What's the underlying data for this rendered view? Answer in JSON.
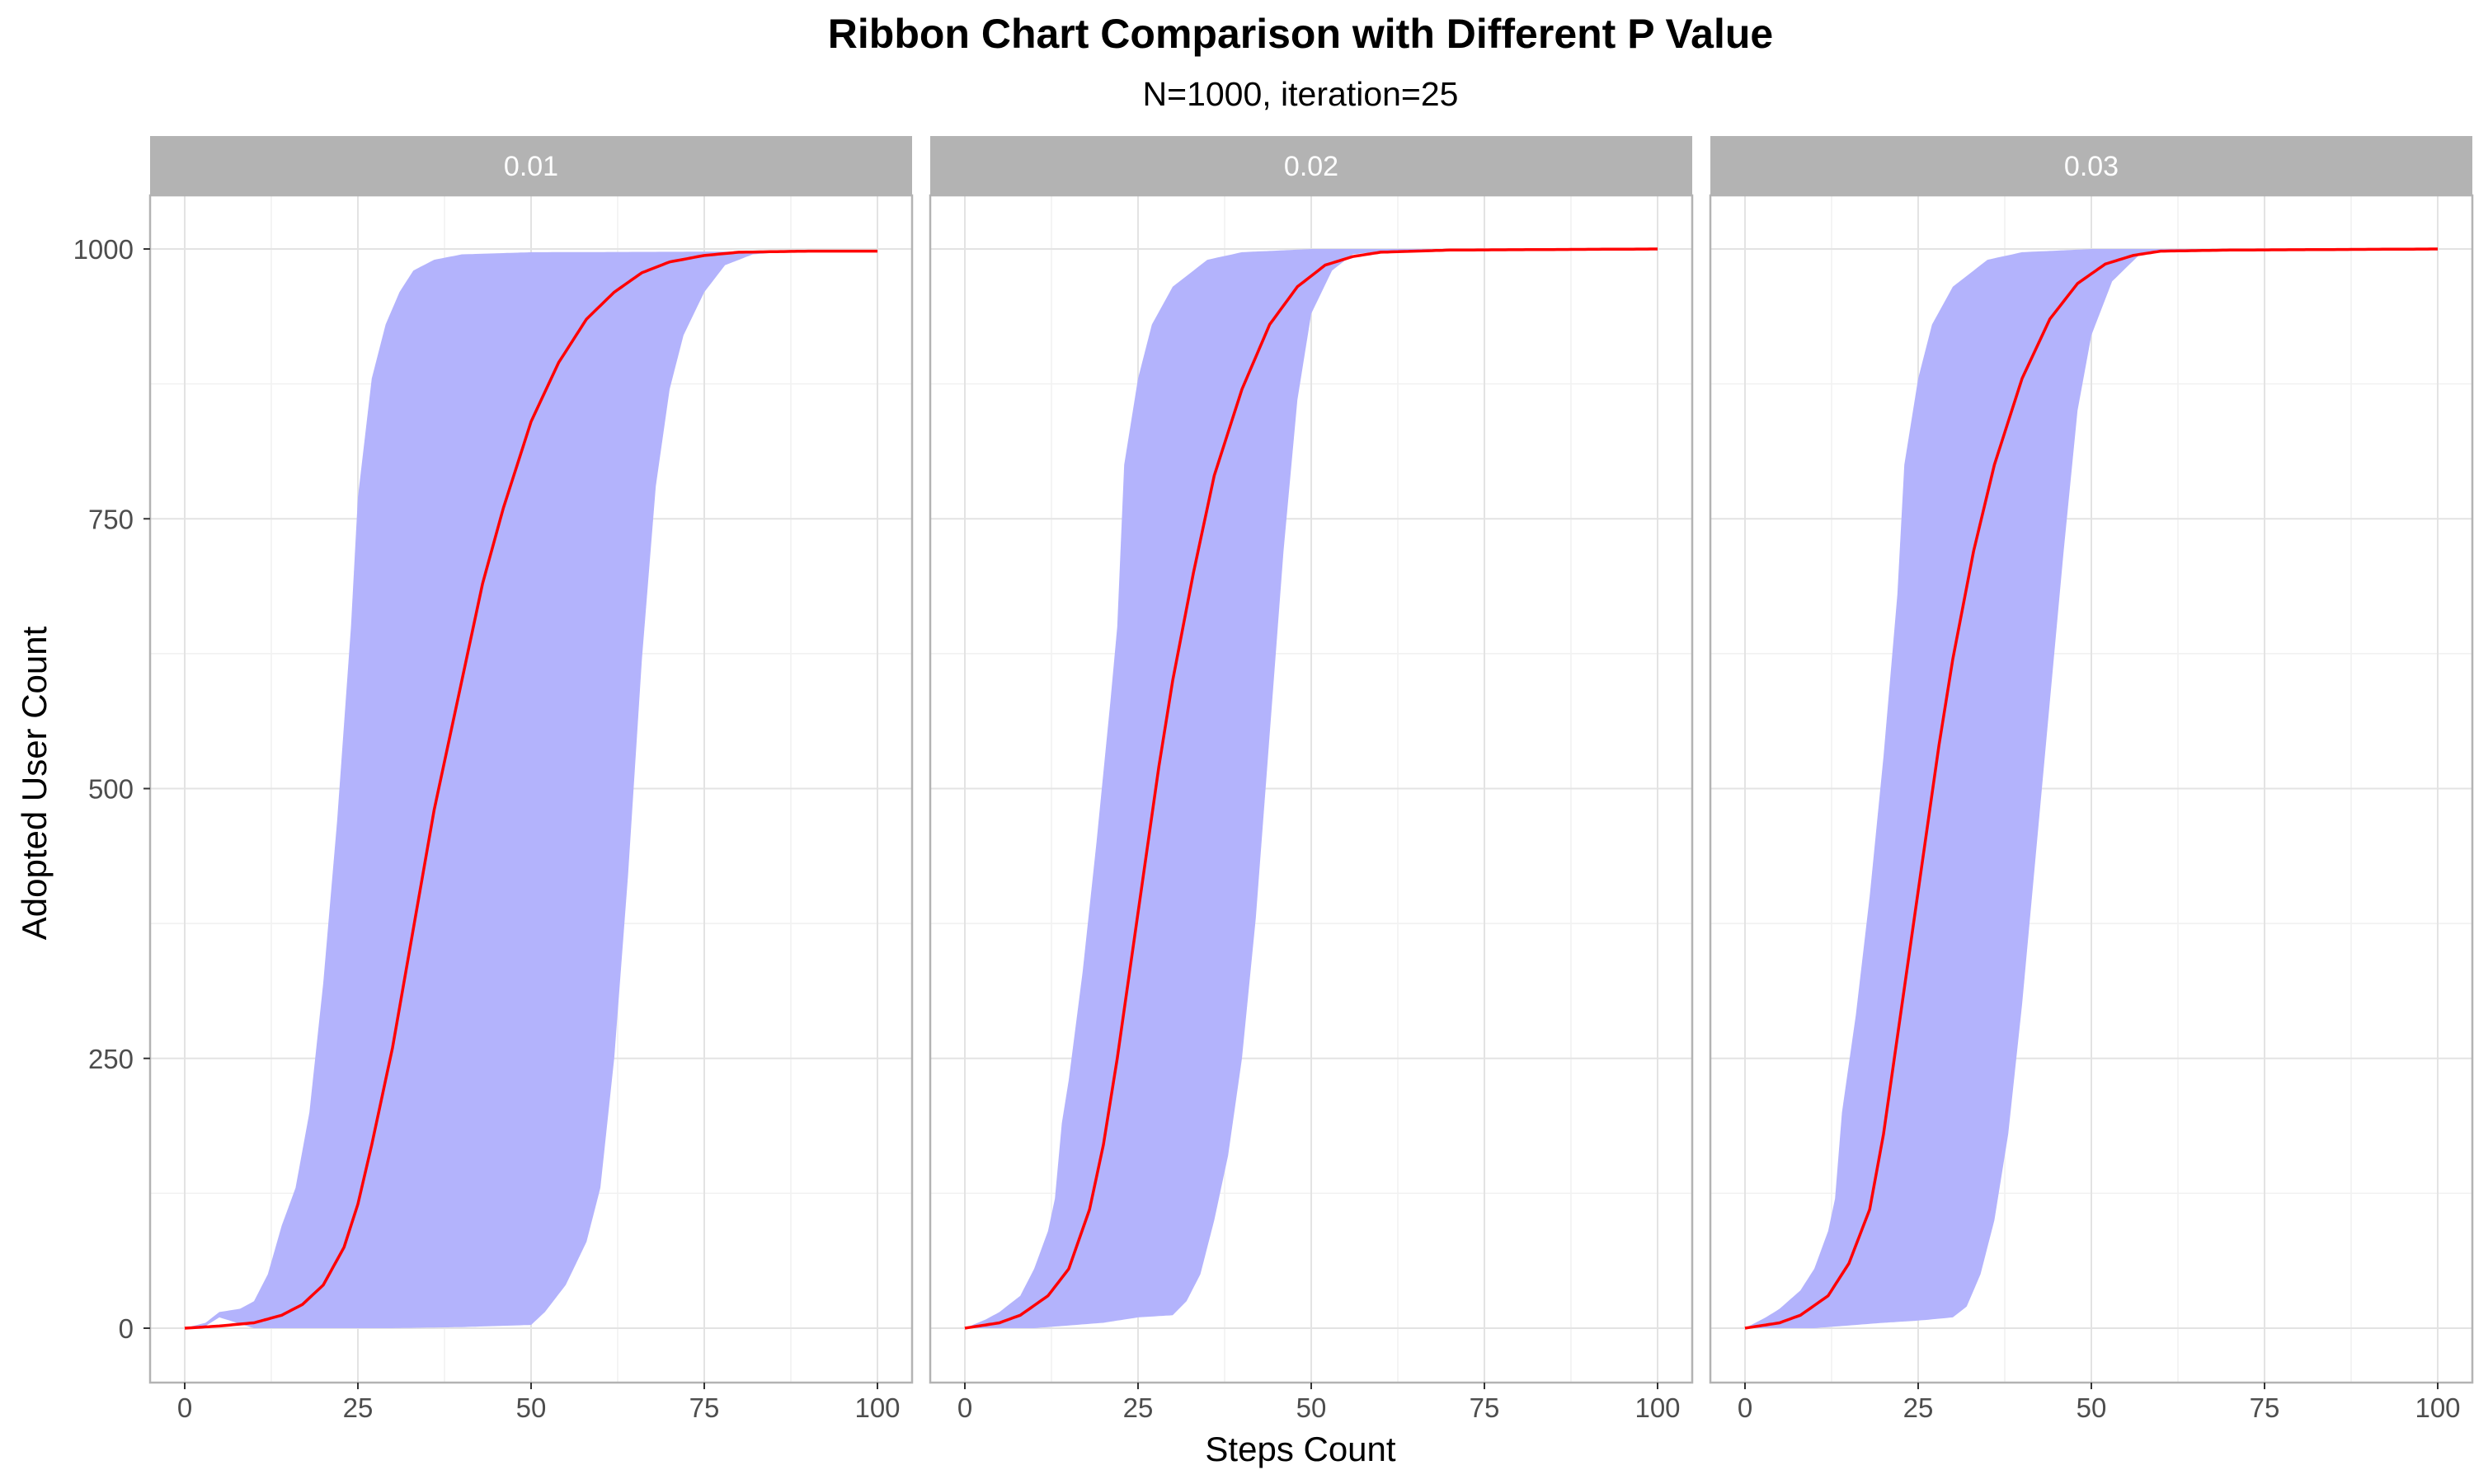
{
  "chart_data": {
    "type": "area",
    "title": "Ribbon Chart Comparison with Different P Value",
    "subtitle": "N=1000, iteration=25",
    "xlabel": "Steps Count",
    "ylabel": "Adopted User Count",
    "xlim": [
      0,
      100
    ],
    "ylim": [
      0,
      1000
    ],
    "x_ticks": [
      0,
      25,
      50,
      75,
      100
    ],
    "y_ticks": [
      0,
      250,
      500,
      750,
      1000
    ],
    "grid": true,
    "colors": {
      "ribbon": "#b3b3fc",
      "line": "#ff0000",
      "strip": "#b3b3b3",
      "panel_border": "#b3b3b3"
    },
    "panels": [
      {
        "label": "0.01",
        "min": [
          [
            0,
            0
          ],
          [
            3,
            2
          ],
          [
            5,
            10
          ],
          [
            10,
            0
          ],
          [
            15,
            0
          ],
          [
            20,
            0
          ],
          [
            30,
            0
          ],
          [
            40,
            1
          ],
          [
            45,
            2
          ],
          [
            50,
            3
          ],
          [
            52,
            15
          ],
          [
            55,
            40
          ],
          [
            58,
            80
          ],
          [
            60,
            130
          ],
          [
            62,
            250
          ],
          [
            64,
            420
          ],
          [
            66,
            620
          ],
          [
            68,
            780
          ],
          [
            70,
            870
          ],
          [
            72,
            920
          ],
          [
            75,
            960
          ],
          [
            78,
            985
          ],
          [
            82,
            995
          ],
          [
            88,
            998
          ],
          [
            100,
            998
          ]
        ],
        "max": [
          [
            0,
            0
          ],
          [
            3,
            5
          ],
          [
            5,
            15
          ],
          [
            8,
            18
          ],
          [
            10,
            25
          ],
          [
            12,
            50
          ],
          [
            14,
            95
          ],
          [
            16,
            130
          ],
          [
            18,
            200
          ],
          [
            20,
            320
          ],
          [
            22,
            470
          ],
          [
            24,
            650
          ],
          [
            25,
            770
          ],
          [
            27,
            880
          ],
          [
            29,
            930
          ],
          [
            31,
            960
          ],
          [
            33,
            980
          ],
          [
            36,
            990
          ],
          [
            40,
            995
          ],
          [
            50,
            997
          ],
          [
            100,
            998
          ]
        ],
        "mean": [
          [
            0,
            0
          ],
          [
            5,
            2
          ],
          [
            10,
            5
          ],
          [
            14,
            12
          ],
          [
            17,
            22
          ],
          [
            20,
            40
          ],
          [
            23,
            75
          ],
          [
            25,
            115
          ],
          [
            27,
            170
          ],
          [
            30,
            260
          ],
          [
            33,
            370
          ],
          [
            36,
            480
          ],
          [
            40,
            600
          ],
          [
            43,
            690
          ],
          [
            46,
            760
          ],
          [
            50,
            840
          ],
          [
            54,
            895
          ],
          [
            58,
            935
          ],
          [
            62,
            960
          ],
          [
            66,
            978
          ],
          [
            70,
            988
          ],
          [
            75,
            994
          ],
          [
            80,
            997
          ],
          [
            90,
            998
          ],
          [
            100,
            998
          ]
        ]
      },
      {
        "label": "0.02",
        "min": [
          [
            0,
            0
          ],
          [
            5,
            0
          ],
          [
            10,
            0
          ],
          [
            20,
            5
          ],
          [
            25,
            10
          ],
          [
            30,
            12
          ],
          [
            32,
            25
          ],
          [
            34,
            50
          ],
          [
            36,
            100
          ],
          [
            38,
            160
          ],
          [
            40,
            250
          ],
          [
            42,
            380
          ],
          [
            44,
            550
          ],
          [
            46,
            720
          ],
          [
            48,
            860
          ],
          [
            50,
            940
          ],
          [
            53,
            980
          ],
          [
            56,
            995
          ],
          [
            60,
            998
          ],
          [
            100,
            1000
          ]
        ],
        "max": [
          [
            0,
            0
          ],
          [
            3,
            8
          ],
          [
            5,
            15
          ],
          [
            8,
            30
          ],
          [
            10,
            55
          ],
          [
            12,
            90
          ],
          [
            13,
            120
          ],
          [
            14,
            190
          ],
          [
            15,
            230
          ],
          [
            17,
            330
          ],
          [
            19,
            450
          ],
          [
            21,
            580
          ],
          [
            22,
            650
          ],
          [
            23,
            800
          ],
          [
            25,
            880
          ],
          [
            27,
            930
          ],
          [
            30,
            965
          ],
          [
            35,
            990
          ],
          [
            40,
            997
          ],
          [
            50,
            1000
          ],
          [
            100,
            1000
          ]
        ],
        "mean": [
          [
            0,
            0
          ],
          [
            5,
            5
          ],
          [
            8,
            12
          ],
          [
            12,
            30
          ],
          [
            15,
            55
          ],
          [
            18,
            110
          ],
          [
            20,
            170
          ],
          [
            22,
            250
          ],
          [
            24,
            340
          ],
          [
            26,
            430
          ],
          [
            28,
            520
          ],
          [
            30,
            600
          ],
          [
            33,
            700
          ],
          [
            36,
            790
          ],
          [
            40,
            870
          ],
          [
            44,
            930
          ],
          [
            48,
            965
          ],
          [
            52,
            985
          ],
          [
            56,
            993
          ],
          [
            60,
            997
          ],
          [
            70,
            999
          ],
          [
            100,
            1000
          ]
        ]
      },
      {
        "label": "0.03",
        "min": [
          [
            0,
            0
          ],
          [
            5,
            0
          ],
          [
            10,
            0
          ],
          [
            20,
            5
          ],
          [
            25,
            7
          ],
          [
            30,
            10
          ],
          [
            32,
            20
          ],
          [
            34,
            50
          ],
          [
            36,
            100
          ],
          [
            38,
            180
          ],
          [
            40,
            300
          ],
          [
            42,
            440
          ],
          [
            44,
            580
          ],
          [
            46,
            720
          ],
          [
            48,
            850
          ],
          [
            50,
            920
          ],
          [
            53,
            970
          ],
          [
            57,
            995
          ],
          [
            62,
            999
          ],
          [
            100,
            1000
          ]
        ],
        "max": [
          [
            0,
            0
          ],
          [
            3,
            10
          ],
          [
            5,
            18
          ],
          [
            8,
            35
          ],
          [
            10,
            55
          ],
          [
            12,
            90
          ],
          [
            13,
            120
          ],
          [
            14,
            200
          ],
          [
            16,
            290
          ],
          [
            18,
            400
          ],
          [
            20,
            530
          ],
          [
            22,
            680
          ],
          [
            23,
            800
          ],
          [
            25,
            880
          ],
          [
            27,
            930
          ],
          [
            30,
            965
          ],
          [
            35,
            990
          ],
          [
            40,
            997
          ],
          [
            50,
            1000
          ],
          [
            100,
            1000
          ]
        ],
        "mean": [
          [
            0,
            0
          ],
          [
            5,
            5
          ],
          [
            8,
            12
          ],
          [
            12,
            30
          ],
          [
            15,
            60
          ],
          [
            18,
            110
          ],
          [
            20,
            180
          ],
          [
            22,
            270
          ],
          [
            24,
            360
          ],
          [
            26,
            450
          ],
          [
            28,
            540
          ],
          [
            30,
            620
          ],
          [
            33,
            720
          ],
          [
            36,
            800
          ],
          [
            40,
            880
          ],
          [
            44,
            935
          ],
          [
            48,
            968
          ],
          [
            52,
            986
          ],
          [
            56,
            994
          ],
          [
            60,
            998
          ],
          [
            70,
            999
          ],
          [
            100,
            1000
          ]
        ]
      }
    ]
  }
}
